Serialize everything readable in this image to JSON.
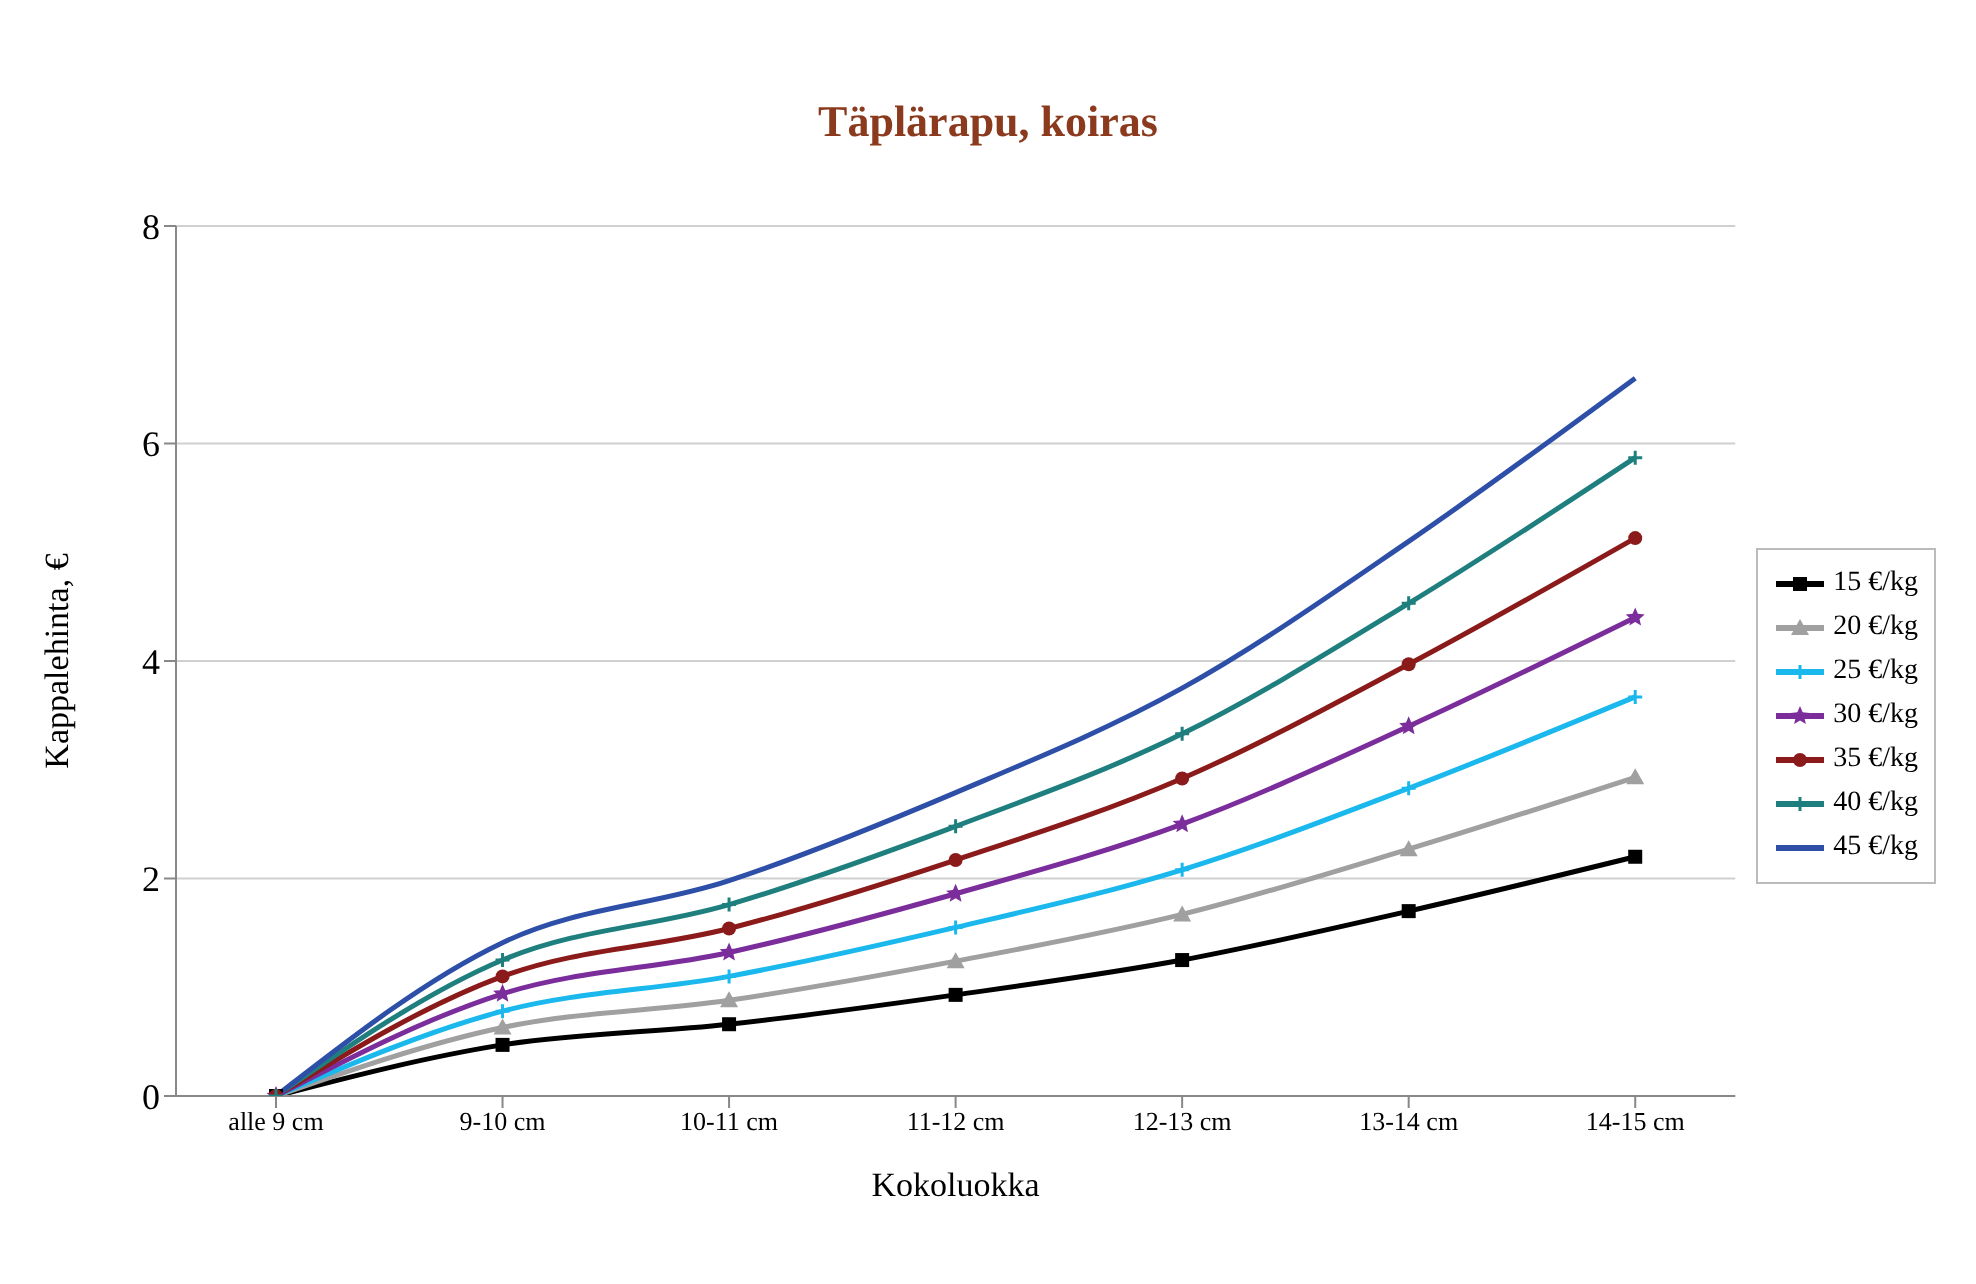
{
  "chart_data": {
    "type": "line",
    "title": "Täplärapu, koiras",
    "xlabel": "Kokoluokka",
    "ylabel": "Kappalehinta, €",
    "categories": [
      "alle 9 cm",
      "9-10 cm",
      "10-11 cm",
      "11-12 cm",
      "12-13 cm",
      "13-14 cm",
      "14-15 cm"
    ],
    "ylim": [
      0,
      8
    ],
    "yticks": [
      0,
      2,
      4,
      6,
      8
    ],
    "grid": "y",
    "legend": "right",
    "series": [
      {
        "name": "15 €/kg",
        "color": "#000000",
        "marker": "square",
        "values": [
          0,
          0.47,
          0.66,
          0.93,
          1.25,
          1.7,
          2.2
        ]
      },
      {
        "name": "20 €/kg",
        "color": "#a0a0a0",
        "marker": "triangle",
        "values": [
          0,
          0.63,
          0.88,
          1.24,
          1.67,
          2.27,
          2.93
        ]
      },
      {
        "name": "25 €/kg",
        "color": "#1ab8ec",
        "marker": "cross",
        "values": [
          0,
          0.78,
          1.1,
          1.55,
          2.08,
          2.83,
          3.67
        ]
      },
      {
        "name": "30 €/kg",
        "color": "#7b2d9b",
        "marker": "star",
        "values": [
          0,
          0.94,
          1.32,
          1.86,
          2.5,
          3.4,
          4.4
        ]
      },
      {
        "name": "35 €/kg",
        "color": "#8b1a1a",
        "marker": "circle",
        "values": [
          0,
          1.1,
          1.54,
          2.17,
          2.92,
          3.97,
          5.13
        ]
      },
      {
        "name": "40 €/kg",
        "color": "#1f7f7f",
        "marker": "cross",
        "values": [
          0,
          1.25,
          1.76,
          2.48,
          3.33,
          4.53,
          5.87
        ]
      },
      {
        "name": "45 €/kg",
        "color": "#2e4fa8",
        "marker": "none",
        "values": [
          0,
          1.41,
          1.98,
          2.79,
          3.75,
          5.1,
          6.6
        ]
      }
    ]
  }
}
